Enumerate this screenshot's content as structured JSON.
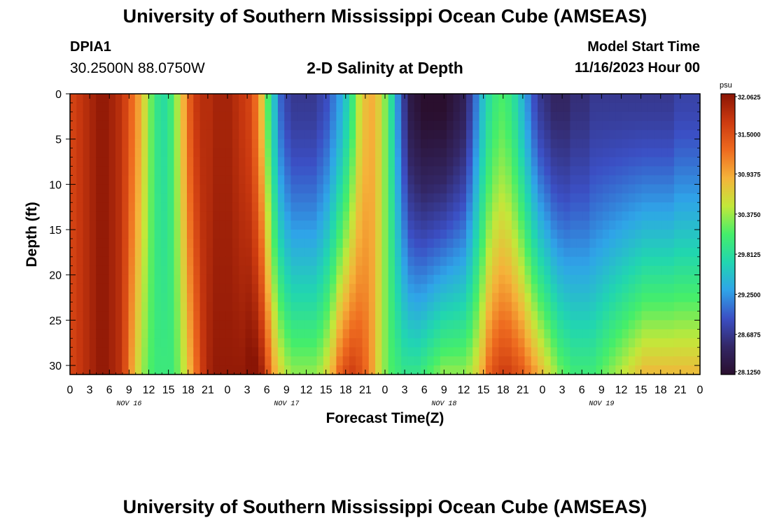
{
  "header": {
    "title": "University of Southern Mississippi Ocean Cube (AMSEAS)",
    "station_id": "DPIA1",
    "coords": "30.2500N  88.0750W",
    "subtitle": "2-D Salinity at Depth",
    "model_start_label": "Model Start Time",
    "model_start_value": "11/16/2023 Hour 00"
  },
  "footer": {
    "title": "University of Southern Mississippi Ocean Cube (AMSEAS)"
  },
  "colors": {
    "ramp": [
      "#2a0f2e",
      "#332766",
      "#3b4fc4",
      "#2fa4e8",
      "#21d6b0",
      "#45ee6a",
      "#c2e83a",
      "#f5b33a",
      "#ee6a1f",
      "#cc3a10",
      "#8a1505"
    ]
  },
  "chart_data": {
    "type": "heatmap",
    "title": "2-D Salinity at Depth",
    "xlabel": "Forecast Time(Z)",
    "ylabel": "Depth (ft)",
    "xlim": [
      0,
      96
    ],
    "ylim": [
      0,
      31
    ],
    "xticks": [
      "0",
      "3",
      "6",
      "9",
      "12",
      "15",
      "18",
      "21",
      "0",
      "3",
      "6",
      "9",
      "12",
      "15",
      "18",
      "21",
      "0",
      "3",
      "6",
      "9",
      "12",
      "15",
      "18",
      "21",
      "0",
      "3",
      "6",
      "9",
      "12",
      "15",
      "18",
      "21",
      "0"
    ],
    "yticks": [
      "0",
      "5",
      "10",
      "15",
      "20",
      "25",
      "30"
    ],
    "day_labels": [
      "NOV 16",
      "NOV 17",
      "NOV 18",
      "NOV 19"
    ],
    "colorbar": {
      "unit": "psu",
      "min": 28.125,
      "max": 32.0625,
      "labels": [
        "32.0625",
        "31.5000",
        "30.9375",
        "30.3750",
        "29.8125",
        "29.2500",
        "28.6875",
        "28.1250"
      ]
    },
    "surface_salinity_psu": [
      31.6,
      31.7,
      31.8,
      31.9,
      32.0,
      32.0,
      31.9,
      31.8,
      31.6,
      31.3,
      31.0,
      30.6,
      30.2,
      29.9,
      29.8,
      30.0,
      30.4,
      30.9,
      31.4,
      31.7,
      31.8,
      31.8,
      31.9,
      31.9,
      31.9,
      31.8,
      31.7,
      31.6,
      31.3,
      30.8,
      30.1,
      29.5,
      29.0,
      28.8,
      28.7,
      28.7,
      28.7,
      28.7,
      28.8,
      28.9,
      29.1,
      29.3,
      29.6,
      30.0,
      30.5,
      30.8,
      30.9,
      30.7,
      30.3,
      29.8,
      29.2,
      28.7,
      28.3,
      28.2,
      28.1,
      28.1,
      28.1,
      28.1,
      28.2,
      28.3,
      28.4,
      28.7,
      29.1,
      29.5,
      29.8,
      30.0,
      30.1,
      30.0,
      29.8,
      29.5,
      29.2,
      28.9,
      28.7,
      28.6,
      28.5,
      28.5,
      28.5,
      28.6,
      28.6,
      28.6,
      28.7,
      28.7,
      28.7,
      28.7,
      28.7,
      28.7,
      28.7,
      28.7,
      28.7,
      28.7,
      28.7,
      28.7,
      28.7,
      28.8,
      28.8,
      28.8,
      28.8
    ],
    "bottom_salinity_psu": [
      31.6,
      31.7,
      31.8,
      31.9,
      32.0,
      32.0,
      31.9,
      31.8,
      31.5,
      31.0,
      30.6,
      30.3,
      30.1,
      30.0,
      30.0,
      30.0,
      30.2,
      30.5,
      30.9,
      31.3,
      31.7,
      31.9,
      32.0,
      32.0,
      32.0,
      32.0,
      32.0,
      32.1,
      32.1,
      31.9,
      31.4,
      30.9,
      30.6,
      30.4,
      30.3,
      30.3,
      30.3,
      30.3,
      30.4,
      30.6,
      30.9,
      31.3,
      31.5,
      31.6,
      31.5,
      31.3,
      31.0,
      30.6,
      30.3,
      30.1,
      30.0,
      29.9,
      29.9,
      29.9,
      30.0,
      30.1,
      30.2,
      30.3,
      30.3,
      30.3,
      30.3,
      30.4,
      30.6,
      30.9,
      31.3,
      31.5,
      31.6,
      31.6,
      31.5,
      31.4,
      31.2,
      31.0,
      30.8,
      30.6,
      30.4,
      30.2,
      30.1,
      30.0,
      30.0,
      30.0,
      30.0,
      30.1,
      30.2,
      30.3,
      30.4,
      30.5,
      30.6,
      30.7,
      30.8,
      30.8,
      30.8,
      30.8,
      30.8,
      30.8,
      30.8,
      30.8,
      30.8
    ]
  }
}
